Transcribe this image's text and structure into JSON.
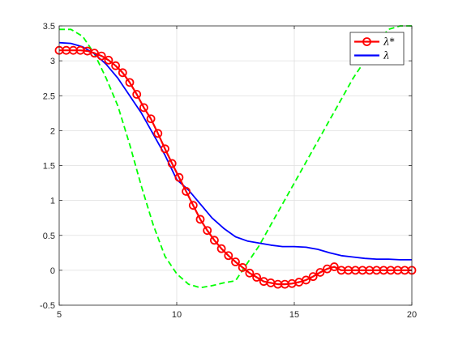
{
  "chart_data": {
    "type": "line",
    "title": "",
    "xlabel": "",
    "ylabel": "",
    "xlim": [
      5,
      20
    ],
    "ylim": [
      -0.5,
      3.5
    ],
    "xticks": [
      5,
      10,
      15,
      20
    ],
    "yticks": [
      -0.5,
      0,
      0.5,
      1,
      1.5,
      2,
      2.5,
      3,
      3.5
    ],
    "xtick_labels": [
      "5",
      "10",
      "15",
      "20"
    ],
    "ytick_labels": [
      "-0.5",
      "0",
      "0.5",
      "1",
      "1.5",
      "2",
      "2.5",
      "3",
      "3.5"
    ],
    "grid": true,
    "legend_position": "top-right",
    "series": [
      {
        "name": "λ*",
        "color": "#ff0000",
        "line_style": "solid",
        "marker": "circle",
        "x": [
          5.0,
          5.3,
          5.6,
          5.9,
          6.2,
          6.5,
          6.8,
          7.1,
          7.4,
          7.7,
          8.0,
          8.3,
          8.6,
          8.9,
          9.2,
          9.5,
          9.8,
          10.1,
          10.4,
          10.7,
          11.0,
          11.3,
          11.6,
          11.9,
          12.2,
          12.5,
          12.8,
          13.1,
          13.4,
          13.7,
          14.0,
          14.3,
          14.6,
          14.9,
          15.2,
          15.5,
          15.8,
          16.1,
          16.4,
          16.7,
          17.0,
          17.3,
          17.6,
          17.9,
          18.2,
          18.5,
          18.8,
          19.1,
          19.4,
          19.7,
          20.0
        ],
        "y": [
          3.15,
          3.15,
          3.15,
          3.15,
          3.14,
          3.11,
          3.07,
          3.01,
          2.93,
          2.83,
          2.69,
          2.52,
          2.33,
          2.17,
          1.96,
          1.74,
          1.53,
          1.33,
          1.13,
          0.93,
          0.73,
          0.57,
          0.43,
          0.31,
          0.21,
          0.12,
          0.04,
          -0.04,
          -0.1,
          -0.16,
          -0.18,
          -0.2,
          -0.2,
          -0.19,
          -0.17,
          -0.14,
          -0.09,
          -0.03,
          0.02,
          0.05,
          0.0,
          0.0,
          0.0,
          0.0,
          0.0,
          0.0,
          0.0,
          0.0,
          0.0,
          0.0,
          0.0
        ]
      },
      {
        "name": "λ",
        "color": "#0000ff",
        "line_style": "solid",
        "marker": "none",
        "x": [
          5.0,
          5.5,
          6.0,
          6.5,
          7.0,
          7.5,
          8.0,
          8.5,
          9.0,
          9.5,
          10.0,
          10.5,
          11.0,
          11.5,
          12.0,
          12.5,
          13.0,
          13.5,
          14.0,
          14.5,
          15.0,
          15.5,
          16.0,
          16.5,
          17.0,
          17.5,
          18.0,
          18.5,
          19.0,
          19.5,
          20.0
        ],
        "y": [
          3.26,
          3.25,
          3.2,
          3.1,
          2.95,
          2.75,
          2.5,
          2.25,
          1.95,
          1.65,
          1.3,
          1.15,
          0.95,
          0.75,
          0.6,
          0.48,
          0.42,
          0.39,
          0.36,
          0.34,
          0.34,
          0.33,
          0.3,
          0.25,
          0.21,
          0.19,
          0.17,
          0.16,
          0.16,
          0.15,
          0.15
        ]
      },
      {
        "color": "#00ff00",
        "line_style": "dashed",
        "marker": "none",
        "x": [
          5.0,
          5.5,
          6.0,
          6.5,
          7.0,
          7.5,
          8.0,
          8.5,
          9.0,
          9.5,
          10.0,
          10.5,
          11.0,
          11.5,
          12.0,
          12.5,
          13.0,
          13.5,
          14.0,
          14.5,
          15.0,
          15.5,
          16.0,
          16.5,
          17.0,
          17.5,
          18.0,
          18.5,
          19.0,
          19.5,
          20.0
        ],
        "y": [
          3.45,
          3.45,
          3.35,
          3.1,
          2.75,
          2.35,
          1.8,
          1.2,
          0.65,
          0.2,
          -0.05,
          -0.2,
          -0.25,
          -0.22,
          -0.18,
          -0.15,
          0.1,
          0.35,
          0.65,
          0.95,
          1.25,
          1.55,
          1.85,
          2.15,
          2.45,
          2.75,
          3.0,
          3.25,
          3.45,
          3.5,
          3.55
        ]
      }
    ]
  }
}
